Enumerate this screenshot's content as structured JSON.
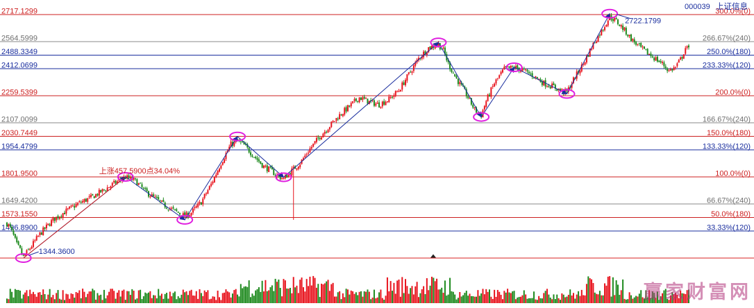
{
  "header": {
    "code": "000039",
    "name": "上证信息"
  },
  "colors": {
    "up": "#e8141e",
    "down": "#1e8a1e",
    "price_line_red": "#cc1f1f",
    "price_line_blue": "#1a2e9e",
    "price_line_gray": "#8a8a8a",
    "label_red": "#cc1f1f",
    "label_blue": "#1a2e9e",
    "label_gray": "#707070",
    "trend_arrow": "#1a2e9e",
    "markup_ellipse": "#e020e0",
    "watermark": "#b0337a",
    "separator": "#d82020"
  },
  "chart_data": {
    "type": "candlestick-with-volume",
    "ylim": [
      1300,
      2745
    ],
    "price_levels": [
      {
        "price": 2717.1299,
        "price_label": "2717.1299",
        "ratio_label": "300.0%(0)",
        "color": "red"
      },
      {
        "price": 2564.5999,
        "price_label": "2564.5999",
        "ratio_label": "266.67%(240)",
        "color": "gray"
      },
      {
        "price": 2488.3349,
        "price_label": "2488.3349",
        "ratio_label": "250.0%(180)",
        "color": "blue"
      },
      {
        "price": 2412.0699,
        "price_label": "2412.0699",
        "ratio_label": "233.33%(120)",
        "color": "blue"
      },
      {
        "price": 2259.5399,
        "price_label": "2259.5399",
        "ratio_label": "200.0%(0)",
        "color": "red"
      },
      {
        "price": 2107.0099,
        "price_label": "2107.0099",
        "ratio_label": "166.67%(240)",
        "color": "gray"
      },
      {
        "price": 2030.7449,
        "price_label": "2030.7449",
        "ratio_label": "150.0%(180)",
        "color": "red"
      },
      {
        "price": 1954.4799,
        "price_label": "1954.4799",
        "ratio_label": "133.33%(120)",
        "color": "blue"
      },
      {
        "price": 1801.95,
        "price_label": "1801.9500",
        "ratio_label": "100.0%(0)",
        "color": "red"
      },
      {
        "price": 1649.42,
        "price_label": "1649.4200",
        "ratio_label": "66.67%(240)",
        "color": "gray"
      },
      {
        "price": 1573.155,
        "price_label": "1573.1550",
        "ratio_label": "50.0%(180)",
        "color": "red"
      },
      {
        "price": 1496.89,
        "price_label": "1496.8900",
        "ratio_label": "33.33%(120)",
        "color": "blue"
      }
    ],
    "price_path": [
      [
        0,
        1540
      ],
      [
        2,
        1515
      ],
      [
        4,
        1470
      ],
      [
        6,
        1420
      ],
      [
        8,
        1390
      ],
      [
        10,
        1350
      ],
      [
        14,
        1400
      ],
      [
        20,
        1480
      ],
      [
        28,
        1560
      ],
      [
        36,
        1610
      ],
      [
        44,
        1655
      ],
      [
        52,
        1690
      ],
      [
        60,
        1735
      ],
      [
        66,
        1770
      ],
      [
        72,
        1800
      ],
      [
        78,
        1780
      ],
      [
        84,
        1720
      ],
      [
        90,
        1680
      ],
      [
        96,
        1640
      ],
      [
        102,
        1610
      ],
      [
        108,
        1580
      ],
      [
        112,
        1600
      ],
      [
        118,
        1660
      ],
      [
        124,
        1760
      ],
      [
        130,
        1880
      ],
      [
        136,
        1985
      ],
      [
        140,
        2005
      ],
      [
        144,
        1980
      ],
      [
        150,
        1920
      ],
      [
        156,
        1860
      ],
      [
        160,
        1840
      ],
      [
        164,
        1810
      ],
      [
        168,
        1790
      ],
      [
        172,
        1830
      ],
      [
        178,
        1880
      ],
      [
        184,
        1960
      ],
      [
        190,
        2030
      ],
      [
        196,
        2090
      ],
      [
        202,
        2150
      ],
      [
        208,
        2200
      ],
      [
        214,
        2250
      ],
      [
        220,
        2225
      ],
      [
        226,
        2210
      ],
      [
        232,
        2240
      ],
      [
        238,
        2290
      ],
      [
        244,
        2380
      ],
      [
        250,
        2470
      ],
      [
        256,
        2530
      ],
      [
        262,
        2550
      ],
      [
        265,
        2515
      ],
      [
        268,
        2440
      ],
      [
        272,
        2370
      ],
      [
        276,
        2310
      ],
      [
        280,
        2250
      ],
      [
        284,
        2180
      ],
      [
        288,
        2150
      ],
      [
        291,
        2230
      ],
      [
        296,
        2330
      ],
      [
        302,
        2410
      ],
      [
        308,
        2420
      ],
      [
        314,
        2400
      ],
      [
        320,
        2370
      ],
      [
        326,
        2330
      ],
      [
        332,
        2310
      ],
      [
        336,
        2290
      ],
      [
        340,
        2280
      ],
      [
        344,
        2350
      ],
      [
        350,
        2440
      ],
      [
        356,
        2550
      ],
      [
        362,
        2640
      ],
      [
        366,
        2705
      ],
      [
        370,
        2680
      ],
      [
        374,
        2640
      ],
      [
        380,
        2570
      ],
      [
        386,
        2520
      ],
      [
        392,
        2480
      ],
      [
        398,
        2440
      ],
      [
        402,
        2400
      ],
      [
        406,
        2420
      ],
      [
        410,
        2480
      ],
      [
        412,
        2530
      ],
      [
        414,
        2520
      ]
    ],
    "pivots": [
      {
        "day": 10,
        "price": 1344.36
      },
      {
        "day": 72,
        "price": 1801.95
      },
      {
        "day": 108,
        "price": 1560
      },
      {
        "day": 140,
        "price": 2030
      },
      {
        "day": 168,
        "price": 1800
      },
      {
        "day": 262,
        "price": 2560
      },
      {
        "day": 288,
        "price": 2140
      },
      {
        "day": 308,
        "price": 2420
      },
      {
        "day": 340,
        "price": 2270
      },
      {
        "day": 366,
        "price": 2722.1799
      }
    ],
    "annotations": {
      "low_label": "1344.3600",
      "high_label": "2722.1799",
      "rise_label": "上涨457.5900点34.04%"
    }
  },
  "watermark": "赢家财富网"
}
